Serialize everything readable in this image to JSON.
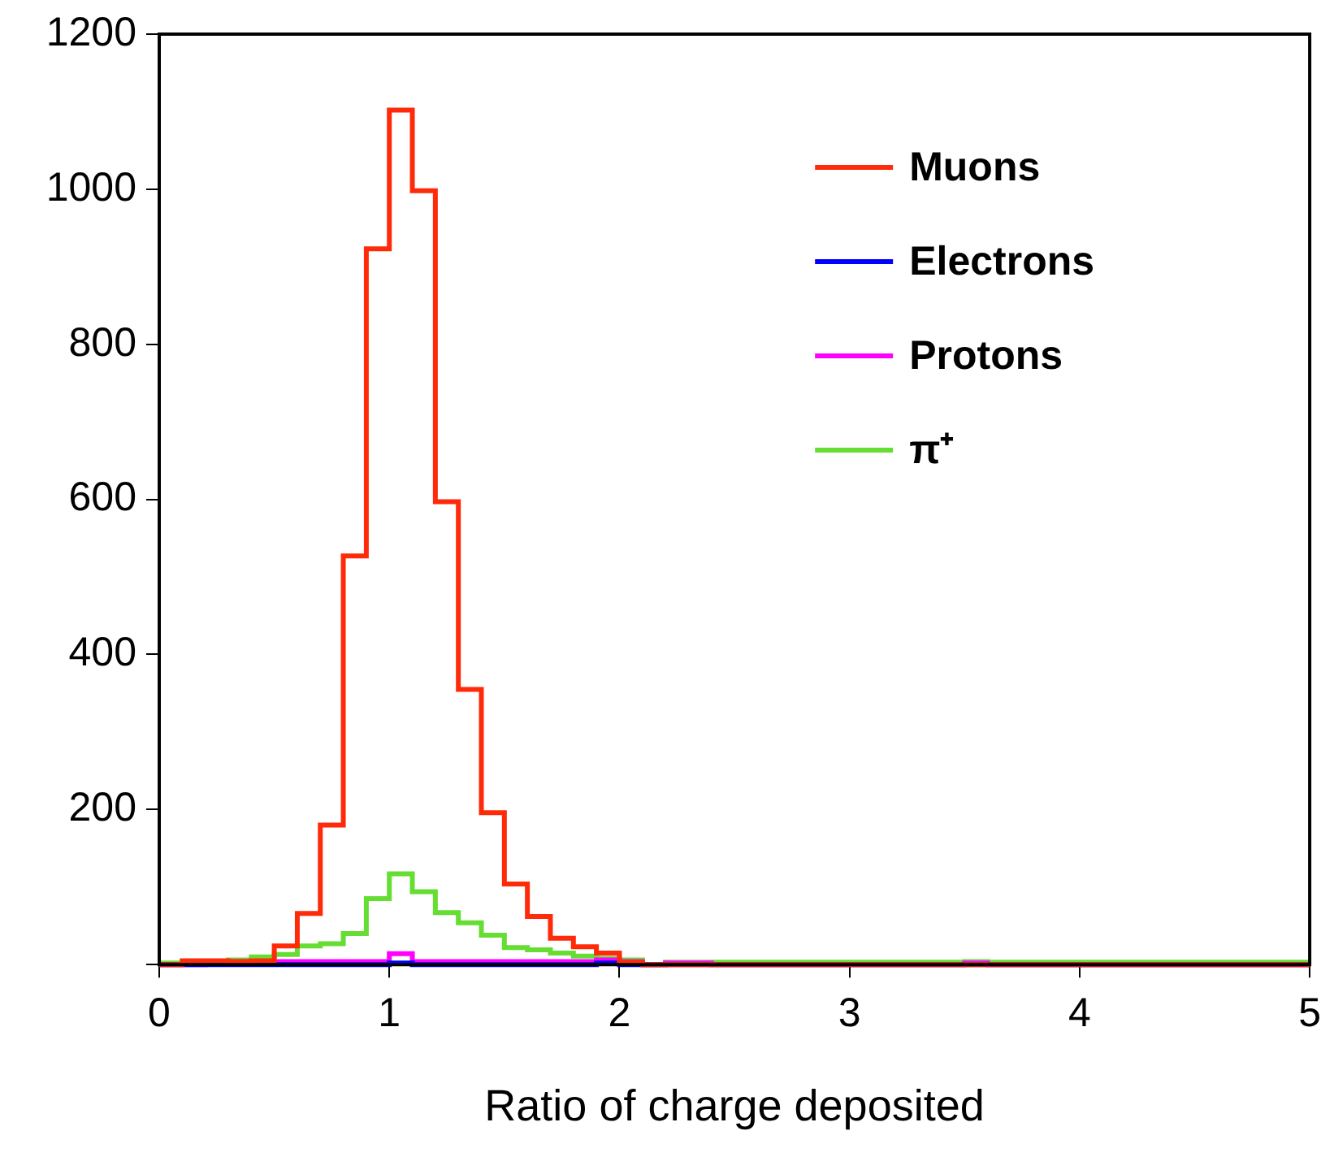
{
  "chart_data": {
    "type": "histogram",
    "xlabel": "Ratio of charge deposited",
    "bins": [
      0,
      0.1,
      0.2,
      0.3,
      0.4,
      0.5,
      0.6,
      0.7,
      0.8,
      0.9,
      1.0,
      1.1,
      1.2,
      1.3,
      1.4,
      1.5,
      1.6,
      1.7,
      1.8,
      1.9,
      2.0,
      2.1,
      2.2,
      2.3,
      2.4,
      2.5,
      2.6,
      2.7,
      2.8,
      2.9,
      3.0,
      3.1,
      3.2,
      3.3,
      3.4,
      3.5,
      3.6,
      3.7,
      3.8,
      3.9,
      4.0,
      4.1,
      4.2,
      4.3,
      4.4,
      4.5,
      4.6,
      4.7,
      4.8,
      4.9,
      5.0
    ],
    "series": [
      {
        "name": "Muons",
        "color": "#ff2a0a",
        "values": [
          0,
          5,
          5,
          4,
          5,
          24,
          66,
          180,
          527,
          923,
          1102,
          998,
          597,
          355,
          196,
          104,
          62,
          34,
          23,
          15,
          3,
          0,
          0,
          0,
          0,
          0,
          0,
          0,
          0,
          0,
          0,
          0,
          0,
          0,
          0,
          0,
          0,
          0,
          0,
          0,
          0,
          0,
          0,
          0,
          0,
          0,
          0,
          0,
          0,
          0
        ]
      },
      {
        "name": "Electrons",
        "color": "#0000ff",
        "values": [
          0,
          0,
          0,
          0,
          0,
          0,
          0,
          0,
          0,
          0,
          2,
          0,
          0,
          0,
          0,
          0,
          0,
          0,
          0,
          2,
          0,
          0,
          0,
          0,
          0,
          0,
          0,
          0,
          0,
          0,
          0,
          0,
          0,
          0,
          0,
          0,
          0,
          0,
          0,
          0,
          0,
          0,
          0,
          0,
          0,
          0,
          0,
          0,
          0,
          0
        ]
      },
      {
        "name": "Protons",
        "color": "#ff00ff",
        "values": [
          0,
          0,
          4,
          4,
          4,
          4,
          4,
          4,
          4,
          4,
          14,
          4,
          4,
          4,
          4,
          4,
          4,
          4,
          4,
          6,
          4,
          0,
          2,
          2,
          0,
          0,
          0,
          0,
          0,
          0,
          0,
          0,
          0,
          0,
          0,
          2,
          0,
          0,
          0,
          0,
          0,
          0,
          0,
          0,
          0,
          0,
          0,
          0,
          0,
          0
        ]
      },
      {
        "name": "π⁺",
        "color": "#66dd33",
        "values": [
          2,
          2,
          2,
          6,
          10,
          13,
          24,
          27,
          40,
          85,
          117,
          94,
          67,
          54,
          38,
          22,
          19,
          15,
          11,
          8,
          6,
          0,
          3,
          3,
          3,
          3,
          3,
          3,
          3,
          3,
          3,
          3,
          3,
          3,
          3,
          4,
          3,
          3,
          3,
          3,
          3,
          3,
          3,
          3,
          3,
          3,
          3,
          3,
          3,
          3
        ]
      }
    ],
    "xlim": [
      0,
      5
    ],
    "xticks": [
      0,
      1,
      2,
      3,
      4,
      5
    ],
    "ylim": [
      0,
      1200
    ],
    "yticks": [
      {
        "value": 0,
        "label": null
      },
      200,
      400,
      600,
      800,
      1000,
      1200
    ],
    "grid": false,
    "legend": "top right"
  }
}
